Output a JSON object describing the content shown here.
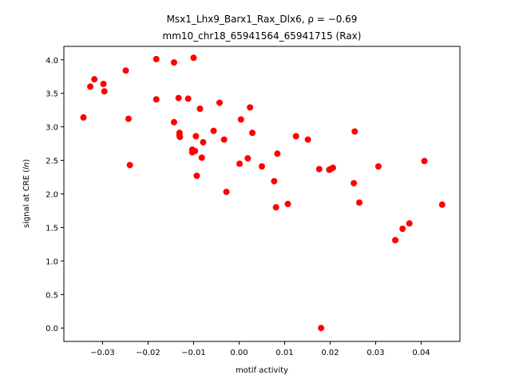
{
  "chart_data": {
    "type": "scatter",
    "title_line1": "Msx1_Lhx9_Barx1_Rax_Dlx6, ρ = −0.69",
    "title_line2": "mm10_chr18_65941564_65941715 (Rax)",
    "xlabel": "motif activity",
    "ylabel": "signal at CRE (ln)",
    "xlim": [
      -0.0385,
      0.0485
    ],
    "ylim": [
      -0.2,
      4.2
    ],
    "xticks": [
      -0.03,
      -0.02,
      -0.01,
      0.0,
      0.01,
      0.02,
      0.03,
      0.04
    ],
    "xtick_labels": [
      "−0.03",
      "−0.02",
      "−0.01",
      "0.00",
      "0.01",
      "0.02",
      "0.03",
      "0.04"
    ],
    "yticks": [
      0.0,
      0.5,
      1.0,
      1.5,
      2.0,
      2.5,
      3.0,
      3.5,
      4.0
    ],
    "ytick_labels": [
      "0.0",
      "0.5",
      "1.0",
      "1.5",
      "2.0",
      "2.5",
      "3.0",
      "3.5",
      "4.0"
    ],
    "grid": false,
    "marker_color": "#ff0000",
    "x": [
      -0.0342,
      -0.0327,
      -0.0318,
      -0.0298,
      -0.0296,
      -0.0249,
      -0.0243,
      -0.024,
      -0.0182,
      -0.0182,
      -0.0143,
      -0.0143,
      -0.0133,
      -0.0131,
      -0.0131,
      -0.013,
      -0.0112,
      -0.0103,
      -0.0103,
      -0.01,
      -0.0097,
      -0.0095,
      -0.0093,
      -0.0086,
      -0.0082,
      -0.0079,
      -0.0056,
      -0.0043,
      -0.0033,
      -0.0028,
      0.0001,
      0.0004,
      0.0019,
      0.0024,
      0.0029,
      0.005,
      0.0077,
      0.0081,
      0.0084,
      0.0107,
      0.0125,
      0.0151,
      0.0176,
      0.018,
      0.0198,
      0.0201,
      0.0206,
      0.0252,
      0.0254,
      0.0264,
      0.0306,
      0.0343,
      0.0359,
      0.0374,
      0.0407,
      0.0446
    ],
    "y": [
      3.14,
      3.6,
      3.71,
      3.64,
      3.53,
      3.84,
      3.12,
      2.43,
      4.01,
      3.41,
      3.96,
      3.07,
      3.43,
      2.91,
      2.87,
      2.85,
      3.42,
      2.62,
      2.66,
      4.03,
      2.64,
      2.86,
      2.27,
      3.27,
      2.54,
      2.77,
      2.94,
      3.36,
      2.81,
      2.03,
      2.45,
      3.11,
      2.53,
      3.29,
      2.91,
      2.41,
      2.19,
      1.8,
      2.6,
      1.85,
      2.86,
      2.81,
      2.37,
      0.0,
      2.36,
      2.37,
      2.39,
      2.16,
      2.93,
      1.87,
      2.41,
      1.31,
      1.48,
      1.56,
      2.49,
      1.84
    ]
  }
}
